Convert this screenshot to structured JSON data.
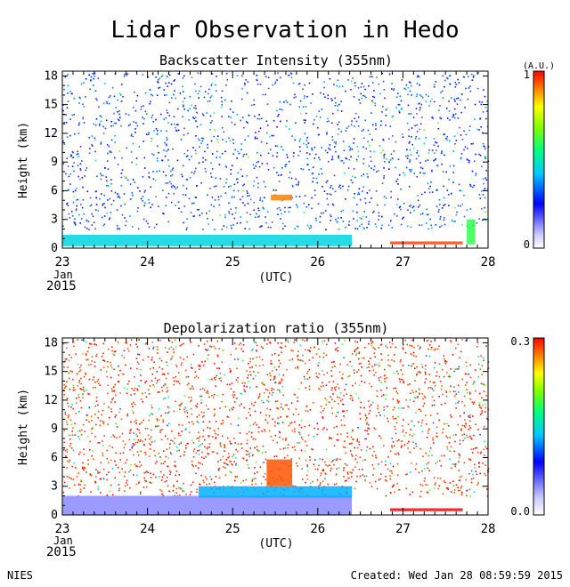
{
  "title": "Lidar Observation in Hedo",
  "footer": {
    "org": "NIES",
    "created": "Created: Wed Jan 28 08:59:59 2015"
  },
  "chart_data": [
    {
      "type": "heatmap",
      "title": "Backscatter Intensity (355nm)",
      "ylabel": "Height (km)",
      "xlabel": "(UTC)",
      "x_ticks": [
        "23",
        "24",
        "25",
        "26",
        "27",
        "28"
      ],
      "x_sublabel_month": "Jan",
      "x_sublabel_year": "2015",
      "xlim_day": [
        23,
        28
      ],
      "y_ticks": [
        0,
        3,
        6,
        9,
        12,
        15,
        18
      ],
      "ylim": [
        0,
        18.5
      ],
      "colorbar": {
        "unit": "(A.U.)",
        "min_label": "0",
        "max_label": "1",
        "min": 0,
        "max": 1
      },
      "features": [
        {
          "desc": "boundary layer",
          "day_start": 23.0,
          "day_end": 26.4,
          "height_km": [
            0.2,
            1.4
          ],
          "value": 0.45
        },
        {
          "desc": "cloud",
          "day_start": 25.45,
          "day_end": 25.7,
          "height_km": [
            5.0,
            5.6
          ],
          "value": 0.9
        },
        {
          "desc": "cloud",
          "day_start": 26.85,
          "day_end": 27.7,
          "height_km": [
            0.4,
            0.7
          ],
          "value": 0.95
        },
        {
          "desc": "cloud",
          "day_start": 27.75,
          "day_end": 27.85,
          "height_km": [
            0.4,
            3.0
          ],
          "value": 0.6
        }
      ]
    },
    {
      "type": "heatmap",
      "title": "Depolarization ratio (355nm)",
      "ylabel": "Height (km)",
      "xlabel": "(UTC)",
      "x_ticks": [
        "23",
        "24",
        "25",
        "26",
        "27",
        "28"
      ],
      "x_sublabel_month": "Jan",
      "x_sublabel_year": "2015",
      "xlim_day": [
        23,
        28
      ],
      "y_ticks": [
        0,
        3,
        6,
        9,
        12,
        15,
        18
      ],
      "ylim": [
        0,
        18.5
      ],
      "colorbar": {
        "min_label": "0.0",
        "max_label": "0.3",
        "min": 0.0,
        "max": 0.3
      },
      "features": [
        {
          "desc": "boundary layer",
          "day_start": 23.0,
          "day_end": 26.4,
          "height_km": [
            0.0,
            2.0
          ],
          "value": 0.04
        },
        {
          "desc": "aerosol top",
          "day_start": 24.6,
          "day_end": 26.4,
          "height_km": [
            1.8,
            3.0
          ],
          "value": 0.12
        },
        {
          "desc": "cloud",
          "day_start": 25.4,
          "day_end": 25.7,
          "height_km": [
            3.0,
            5.8
          ],
          "value": 0.28
        },
        {
          "desc": "cloud",
          "day_start": 26.85,
          "day_end": 27.7,
          "height_km": [
            0.4,
            0.7
          ],
          "value": 0.3
        }
      ]
    }
  ]
}
